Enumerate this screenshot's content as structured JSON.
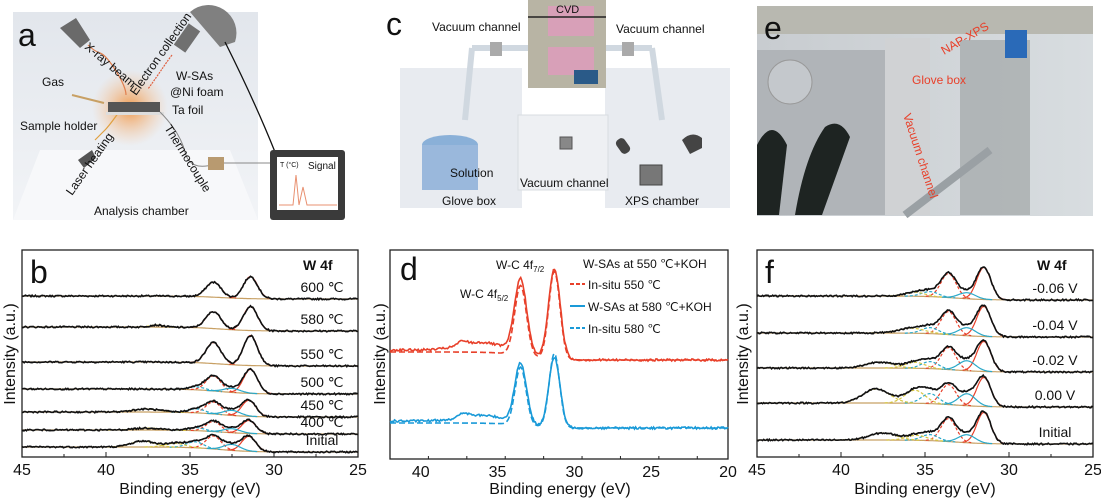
{
  "colors": {
    "fit_red": "#e8402a",
    "component_cyan": "#2aa8c8",
    "component_yellow": "#d6c640",
    "background_tan": "#c8a064",
    "blue": "#1a9ad8",
    "raw_black": "#111111"
  },
  "panel_a": {
    "letter": "a",
    "labels": {
      "xray": "X-ray beam",
      "electron": "Electron collection",
      "gas": "Gas",
      "wsas": "W-SAs",
      "nifoam": "@Ni foam",
      "tafoil": "Ta foil",
      "holder": "Sample holder",
      "laser": "Laser heating",
      "thermo": "Thermocouple",
      "chamber": "Analysis chamber",
      "temp": "T (°C)",
      "signal": "Signal"
    }
  },
  "panel_c": {
    "letter": "c",
    "labels": {
      "vac_left": "Vacuum channel",
      "vac_right": "Vacuum channel",
      "vac_mid": "Vacuum channel",
      "cvd": "CVD",
      "solution": "Solution",
      "glovebox": "Glove box",
      "xps": "XPS chamber"
    }
  },
  "panel_e": {
    "letter": "e",
    "labels": {
      "napxps": "NAP-XPS",
      "glovebox": "Glove box",
      "vacuum": "Vacuum channel"
    }
  },
  "chart_data": [
    {
      "panel": "b",
      "type": "line",
      "title": "W 4f",
      "xlabel": "Binding energy (eV)",
      "ylabel": "Intensity (a.u.)",
      "xlim": [
        45,
        25
      ],
      "xticks": [
        "45",
        "40",
        "35",
        "30",
        "25"
      ],
      "ylim": [
        0,
        207
      ],
      "peak_format": "[center_eV, height_au, sigma_eV]",
      "series": [
        {
          "name": "600 ℃",
          "offset": 158,
          "background_step": 3,
          "peaks": [
            [
              31.4,
              22,
              0.42
            ],
            [
              33.6,
              15,
              0.45
            ]
          ]
        },
        {
          "name": "580 ℃",
          "offset": 126,
          "background_step": 4,
          "peaks": [
            [
              31.4,
              24,
              0.42
            ],
            [
              33.6,
              17,
              0.45
            ],
            [
              37.0,
              2,
              0.4
            ]
          ]
        },
        {
          "name": "550 ℃",
          "offset": 91,
          "background_step": 4,
          "peaks": [
            [
              31.4,
              30,
              0.42
            ],
            [
              33.6,
              21,
              0.45
            ]
          ]
        },
        {
          "name": "500 ℃",
          "offset": 63,
          "background_step": 5,
          "peaks": [
            [
              31.4,
              24,
              0.42
            ],
            [
              33.6,
              15,
              0.45
            ],
            [
              32.5,
              4,
              0.5
            ],
            [
              34.6,
              3,
              0.5
            ]
          ]
        },
        {
          "name": "450 ℃",
          "offset": 40,
          "background_step": 5,
          "peaks": [
            [
              31.5,
              16,
              0.42
            ],
            [
              33.6,
              12,
              0.45
            ],
            [
              32.5,
              5,
              0.5
            ],
            [
              34.6,
              4,
              0.5
            ],
            [
              37.6,
              3,
              0.8
            ]
          ]
        },
        {
          "name": "400 ℃",
          "offset": 23,
          "background_step": 4,
          "peaks": [
            [
              31.5,
              13,
              0.42
            ],
            [
              33.6,
              10,
              0.45
            ],
            [
              32.5,
              4,
              0.5
            ],
            [
              34.6,
              3,
              0.5
            ],
            [
              37.5,
              2,
              0.8
            ]
          ]
        },
        {
          "name": "Initial",
          "offset": 5,
          "background_step": 5,
          "peaks": [
            [
              31.5,
              15,
              0.42
            ],
            [
              33.6,
              13,
              0.45
            ],
            [
              32.5,
              6,
              0.5
            ],
            [
              34.7,
              6,
              0.5
            ],
            [
              35.9,
              4,
              0.6
            ],
            [
              37.8,
              6,
              0.7
            ]
          ]
        }
      ]
    },
    {
      "panel": "d",
      "type": "line",
      "xlabel": "Binding energy (eV)",
      "ylabel": "Intensity (a.u.)",
      "xlim": [
        42,
        20
      ],
      "xticks": [
        "40",
        "35",
        "30",
        "25",
        "20"
      ],
      "ylim": [
        0,
        209
      ],
      "annotations": [
        {
          "text": "W-C 4f",
          "sub": "7/2",
          "x": 31.3
        },
        {
          "text": "W-C 4f",
          "sub": "5/2",
          "x": 33.5
        }
      ],
      "legend_position": "top-right",
      "series": [
        {
          "name": "W-SAs at 550 ℃+KOH",
          "color": "#e8402a",
          "style": "solid",
          "offset": 99,
          "background_step": 10,
          "peaks": [
            [
              31.3,
              90,
              0.38
            ],
            [
              33.5,
              74,
              0.4
            ],
            [
              36.0,
              8,
              1.4
            ],
            [
              37.3,
              4,
              0.3
            ]
          ]
        },
        {
          "name": "In-situ 550 ℃",
          "color": "#e8402a",
          "style": "dashed",
          "offset": 99,
          "background_step": 8,
          "peaks": [
            [
              31.3,
              88,
              0.36
            ],
            [
              33.5,
              70,
              0.38
            ]
          ]
        },
        {
          "name": "W-SAs at 580 ℃+KOH",
          "color": "#1a9ad8",
          "style": "solid",
          "offset": 31,
          "background_step": 7,
          "peaks": [
            [
              31.3,
              70,
              0.36
            ],
            [
              33.5,
              60,
              0.38
            ],
            [
              36.0,
              6,
              1.4
            ],
            [
              37.2,
              4,
              0.3
            ]
          ]
        },
        {
          "name": "In-situ 580 ℃",
          "color": "#1a9ad8",
          "style": "dashed",
          "offset": 31,
          "background_step": 5,
          "peaks": [
            [
              31.3,
              74,
              0.34
            ],
            [
              33.5,
              58,
              0.36
            ]
          ]
        }
      ]
    },
    {
      "panel": "f",
      "type": "line",
      "title": "W 4f",
      "xlabel": "Binding energy (eV)",
      "ylabel": "Intensity (a.u.)",
      "xlim": [
        45,
        25
      ],
      "xticks": [
        "45",
        "40",
        "35",
        "30",
        "25"
      ],
      "ylim": [
        0,
        207
      ],
      "peak_format": "[center_eV, height_au, sigma_eV]",
      "series": [
        {
          "name": "-0.06 V",
          "offset": 157,
          "background_step": 4,
          "peaks": [
            [
              31.5,
              32,
              0.42
            ],
            [
              33.6,
              24,
              0.45
            ],
            [
              32.5,
              6,
              0.5
            ],
            [
              34.7,
              5,
              0.5
            ],
            [
              35.6,
              4,
              0.6
            ]
          ]
        },
        {
          "name": "-0.04 V",
          "offset": 120,
          "background_step": 4,
          "peaks": [
            [
              31.5,
              30,
              0.42
            ],
            [
              33.6,
              23,
              0.45
            ],
            [
              32.5,
              8,
              0.5
            ],
            [
              34.7,
              6,
              0.5
            ],
            [
              35.8,
              5,
              0.8
            ]
          ]
        },
        {
          "name": "-0.02 V",
          "offset": 85,
          "background_step": 4,
          "peaks": [
            [
              31.5,
              30,
              0.42
            ],
            [
              33.6,
              22,
              0.45
            ],
            [
              32.5,
              10,
              0.5
            ],
            [
              34.7,
              7,
              0.5
            ],
            [
              35.6,
              6,
              0.6
            ],
            [
              37.7,
              6,
              0.8
            ]
          ]
        },
        {
          "name": "0.00 V",
          "offset": 50,
          "background_step": 4,
          "peaks": [
            [
              31.5,
              29,
              0.42
            ],
            [
              33.6,
              20,
              0.45
            ],
            [
              32.5,
              12,
              0.5
            ],
            [
              34.7,
              10,
              0.5
            ],
            [
              35.6,
              13,
              0.6
            ],
            [
              37.9,
              14,
              0.8
            ]
          ]
        },
        {
          "name": "Initial",
          "offset": 13,
          "background_step": 4,
          "peaks": [
            [
              31.5,
              31,
              0.42
            ],
            [
              33.6,
              23,
              0.45
            ],
            [
              32.5,
              8,
              0.5
            ],
            [
              34.7,
              6,
              0.5
            ],
            [
              35.5,
              5,
              0.6
            ],
            [
              37.5,
              7,
              0.8
            ]
          ]
        }
      ]
    }
  ]
}
